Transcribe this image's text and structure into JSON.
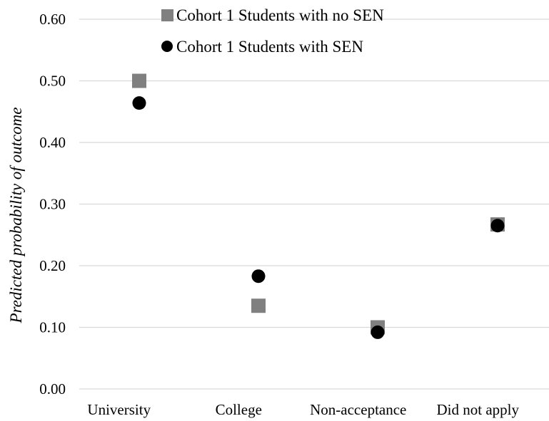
{
  "chart_data": {
    "type": "scatter",
    "categories": [
      "University",
      "College",
      "Non-acceptance",
      "Did not apply"
    ],
    "ylabel": "Predicted probability of outcome",
    "ylim": [
      0,
      0.6
    ],
    "yticks": [
      "0.00",
      "0.10",
      "0.20",
      "0.30",
      "0.40",
      "0.50",
      "0.60"
    ],
    "grid": true,
    "legend_position": "top",
    "series": [
      {
        "name": "Cohort 1 Students with no SEN",
        "marker": "square",
        "color": "#808080",
        "values": [
          0.5,
          0.135,
          0.1,
          0.267
        ]
      },
      {
        "name": "Cohort 1 Students with SEN",
        "marker": "circle",
        "color": "#000000",
        "values": [
          0.464,
          0.183,
          0.092,
          0.265
        ]
      }
    ]
  }
}
